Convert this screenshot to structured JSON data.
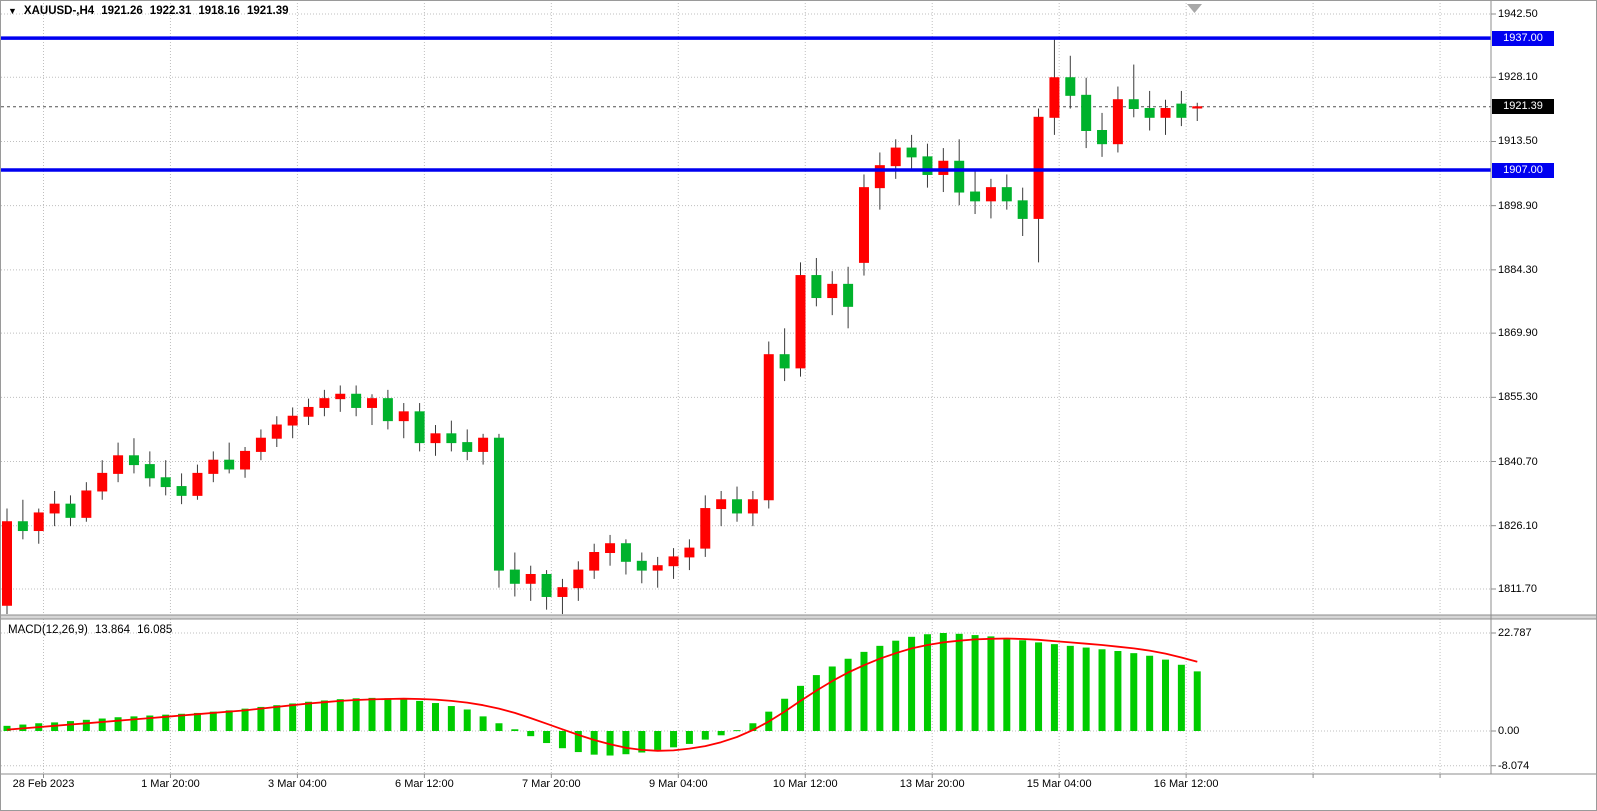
{
  "header": {
    "dropdown_icon": "▼",
    "symbol": "XAUUSD-,H4",
    "open": "1921.26",
    "high": "1922.31",
    "low": "1918.16",
    "close": "1921.39"
  },
  "colors": {
    "bull": "#ff0000",
    "bear": "#00b22c",
    "wick": "#3a3a3a",
    "macd_hist": "#00cc00",
    "macd_signal": "#ff0000",
    "level_line": "#0000f0",
    "grid": "#bfbfbf",
    "frame": "#8c8c8c",
    "current_line": "#505050",
    "shift_marker": "#a8a8a8"
  },
  "chart_data": {
    "type": "candlestick",
    "title": "XAUUSD-,H4",
    "symbol": "XAUUSD-",
    "timeframe": "H4",
    "grid": true,
    "ylim": [
      1806,
      1944
    ],
    "ohlc_current": {
      "open": 1921.26,
      "high": 1922.31,
      "low": 1918.16,
      "close": 1921.39
    },
    "price_axis_ticks": [
      {
        "v": 1942.5,
        "label": "1942.50"
      },
      {
        "v": 1928.1,
        "label": "1928.10"
      },
      {
        "v": 1913.5,
        "label": "1913.50"
      },
      {
        "v": 1898.9,
        "label": "1898.90"
      },
      {
        "v": 1884.3,
        "label": "1884.30"
      },
      {
        "v": 1869.9,
        "label": "1869.90"
      },
      {
        "v": 1855.3,
        "label": "1855.30"
      },
      {
        "v": 1840.7,
        "label": "1840.70"
      },
      {
        "v": 1826.1,
        "label": "1826.10"
      },
      {
        "v": 1811.7,
        "label": "1811.70"
      }
    ],
    "horizontal_levels": [
      {
        "v": 1937.0,
        "label": "1937.00"
      },
      {
        "v": 1907.0,
        "label": "1907.00"
      }
    ],
    "current_price": {
      "v": 1921.39,
      "label": "1921.39"
    },
    "time_ticks": [
      {
        "label": "28 Feb 2023",
        "i": 2.3
      },
      {
        "label": "1 Mar 20:00",
        "i": 10.3
      },
      {
        "label": "3 Mar 04:00",
        "i": 18.3
      },
      {
        "label": "6 Mar 12:00",
        "i": 26.3
      },
      {
        "label": "7 Mar 20:00",
        "i": 34.3
      },
      {
        "label": "9 Mar 04:00",
        "i": 42.3
      },
      {
        "label": "10 Mar 12:00",
        "i": 50.3
      },
      {
        "label": "13 Mar 20:00",
        "i": 58.3
      },
      {
        "label": "15 Mar 04:00",
        "i": 66.3
      },
      {
        "label": "16 Mar 12:00",
        "i": 74.3
      }
    ],
    "extra_grid_i": [
      82.3,
      90.3
    ],
    "candles": [
      [
        1808,
        1830,
        1806,
        1827
      ],
      [
        1827,
        1832,
        1823,
        1825
      ],
      [
        1825,
        1830,
        1822,
        1829
      ],
      [
        1829,
        1834,
        1826,
        1831
      ],
      [
        1831,
        1833,
        1826,
        1828
      ],
      [
        1828,
        1836,
        1827,
        1834
      ],
      [
        1834,
        1841,
        1832,
        1838
      ],
      [
        1838,
        1845,
        1836,
        1842
      ],
      [
        1842,
        1846,
        1838,
        1840
      ],
      [
        1840,
        1843,
        1835,
        1837
      ],
      [
        1837,
        1841,
        1833,
        1835
      ],
      [
        1835,
        1838,
        1831,
        1833
      ],
      [
        1833,
        1840,
        1832,
        1838
      ],
      [
        1838,
        1843,
        1836,
        1841
      ],
      [
        1841,
        1845,
        1838,
        1839
      ],
      [
        1839,
        1844,
        1837,
        1843
      ],
      [
        1843,
        1848,
        1841,
        1846
      ],
      [
        1846,
        1851,
        1844,
        1849
      ],
      [
        1849,
        1853,
        1846,
        1851
      ],
      [
        1851,
        1855,
        1849,
        1853
      ],
      [
        1853,
        1857,
        1851,
        1855
      ],
      [
        1855,
        1858,
        1852,
        1856
      ],
      [
        1856,
        1858,
        1851,
        1853
      ],
      [
        1853,
        1856,
        1849,
        1855
      ],
      [
        1855,
        1857,
        1848,
        1850
      ],
      [
        1850,
        1854,
        1846,
        1852
      ],
      [
        1852,
        1854,
        1843,
        1845
      ],
      [
        1845,
        1849,
        1842,
        1847
      ],
      [
        1847,
        1850,
        1843,
        1845
      ],
      [
        1845,
        1848,
        1841,
        1843
      ],
      [
        1843,
        1847,
        1840,
        1846
      ],
      [
        1846,
        1847,
        1812,
        1816
      ],
      [
        1816,
        1820,
        1810,
        1813
      ],
      [
        1813,
        1817,
        1809,
        1815
      ],
      [
        1815,
        1816,
        1807,
        1810
      ],
      [
        1810,
        1814,
        1806,
        1812
      ],
      [
        1812,
        1818,
        1809,
        1816
      ],
      [
        1816,
        1822,
        1814,
        1820
      ],
      [
        1820,
        1824,
        1817,
        1822
      ],
      [
        1822,
        1823,
        1815,
        1818
      ],
      [
        1818,
        1820,
        1813,
        1816
      ],
      [
        1816,
        1819,
        1812,
        1817
      ],
      [
        1817,
        1821,
        1814,
        1819
      ],
      [
        1819,
        1823,
        1816,
        1821
      ],
      [
        1821,
        1833,
        1819,
        1830
      ],
      [
        1830,
        1834,
        1826,
        1832
      ],
      [
        1832,
        1835,
        1827,
        1829
      ],
      [
        1829,
        1834,
        1826,
        1832
      ],
      [
        1832,
        1868,
        1830,
        1865
      ],
      [
        1865,
        1871,
        1859,
        1862
      ],
      [
        1862,
        1886,
        1860,
        1883
      ],
      [
        1883,
        1887,
        1876,
        1878
      ],
      [
        1878,
        1884,
        1874,
        1881
      ],
      [
        1881,
        1885,
        1871,
        1876
      ],
      [
        1886,
        1906,
        1883,
        1903
      ],
      [
        1903,
        1911,
        1898,
        1908
      ],
      [
        1908,
        1914,
        1905,
        1912
      ],
      [
        1912,
        1915,
        1907,
        1910
      ],
      [
        1910,
        1913,
        1903,
        1906
      ],
      [
        1906,
        1912,
        1902,
        1909
      ],
      [
        1909,
        1914,
        1899,
        1902
      ],
      [
        1902,
        1907,
        1897,
        1900
      ],
      [
        1900,
        1905,
        1896,
        1903
      ],
      [
        1903,
        1906,
        1898,
        1900
      ],
      [
        1900,
        1903,
        1892,
        1896
      ],
      [
        1896,
        1921,
        1886,
        1919
      ],
      [
        1919,
        1937,
        1915,
        1928
      ],
      [
        1928,
        1933,
        1921,
        1924
      ],
      [
        1924,
        1928,
        1912,
        1916
      ],
      [
        1916,
        1920,
        1910,
        1913
      ],
      [
        1913,
        1926,
        1911,
        1923
      ],
      [
        1923,
        1931,
        1919,
        1921
      ],
      [
        1921,
        1925,
        1916,
        1919
      ],
      [
        1919,
        1923,
        1915,
        1921
      ],
      [
        1922,
        1925,
        1917,
        1919
      ],
      [
        1921.26,
        1922.31,
        1918.16,
        1921.39
      ]
    ],
    "macd": {
      "name": "MACD(12,26,9)",
      "main": 13.864,
      "signal_value": 16.085,
      "main_label": "13.864",
      "signal_label": "16.085",
      "ylim": [
        -8.074,
        22.787
      ],
      "axis_ticks": [
        {
          "v": 22.787,
          "label": "22.787"
        },
        {
          "v": 0,
          "label": "0.00"
        },
        {
          "v": -8.074,
          "label": "-8.074"
        }
      ],
      "histogram": [
        1.2,
        1.5,
        1.8,
        2.0,
        2.3,
        2.6,
        2.9,
        3.2,
        3.4,
        3.6,
        3.8,
        4.0,
        4.2,
        4.5,
        4.8,
        5.2,
        5.6,
        6.0,
        6.4,
        6.8,
        7.1,
        7.4,
        7.6,
        7.7,
        7.6,
        7.4,
        7.0,
        6.5,
        5.8,
        5.0,
        3.4,
        1.8,
        0.4,
        -1.2,
        -2.8,
        -4.0,
        -4.9,
        -5.5,
        -5.7,
        -5.4,
        -5.0,
        -4.4,
        -3.8,
        -3.0,
        -2.0,
        -1.0,
        0.2,
        1.8,
        4.5,
        7.5,
        10.5,
        13.0,
        15.0,
        16.8,
        18.4,
        19.8,
        21.0,
        21.9,
        22.5,
        22.787,
        22.6,
        22.3,
        22.0,
        21.6,
        21.1,
        20.6,
        20.2,
        19.8,
        19.4,
        19.0,
        18.6,
        18.1,
        17.5,
        16.6,
        15.4,
        13.864
      ],
      "signal": [
        0.3,
        0.6,
        0.9,
        1.2,
        1.5,
        1.8,
        2.1,
        2.4,
        2.7,
        3.0,
        3.3,
        3.6,
        3.9,
        4.2,
        4.5,
        4.8,
        5.2,
        5.6,
        6.0,
        6.4,
        6.7,
        7.0,
        7.2,
        7.35,
        7.45,
        7.5,
        7.45,
        7.3,
        7.0,
        6.6,
        6.0,
        5.2,
        4.2,
        3.0,
        1.7,
        0.4,
        -0.9,
        -2.1,
        -3.1,
        -3.9,
        -4.4,
        -4.6,
        -4.5,
        -4.1,
        -3.5,
        -2.6,
        -1.4,
        0.2,
        2.2,
        4.5,
        7.0,
        9.4,
        11.6,
        13.6,
        15.3,
        16.8,
        18.1,
        19.2,
        20.0,
        20.6,
        21.0,
        21.3,
        21.45,
        21.5,
        21.4,
        21.2,
        20.9,
        20.6,
        20.3,
        20.0,
        19.6,
        19.2,
        18.7,
        18.0,
        17.1,
        16.085
      ]
    }
  }
}
